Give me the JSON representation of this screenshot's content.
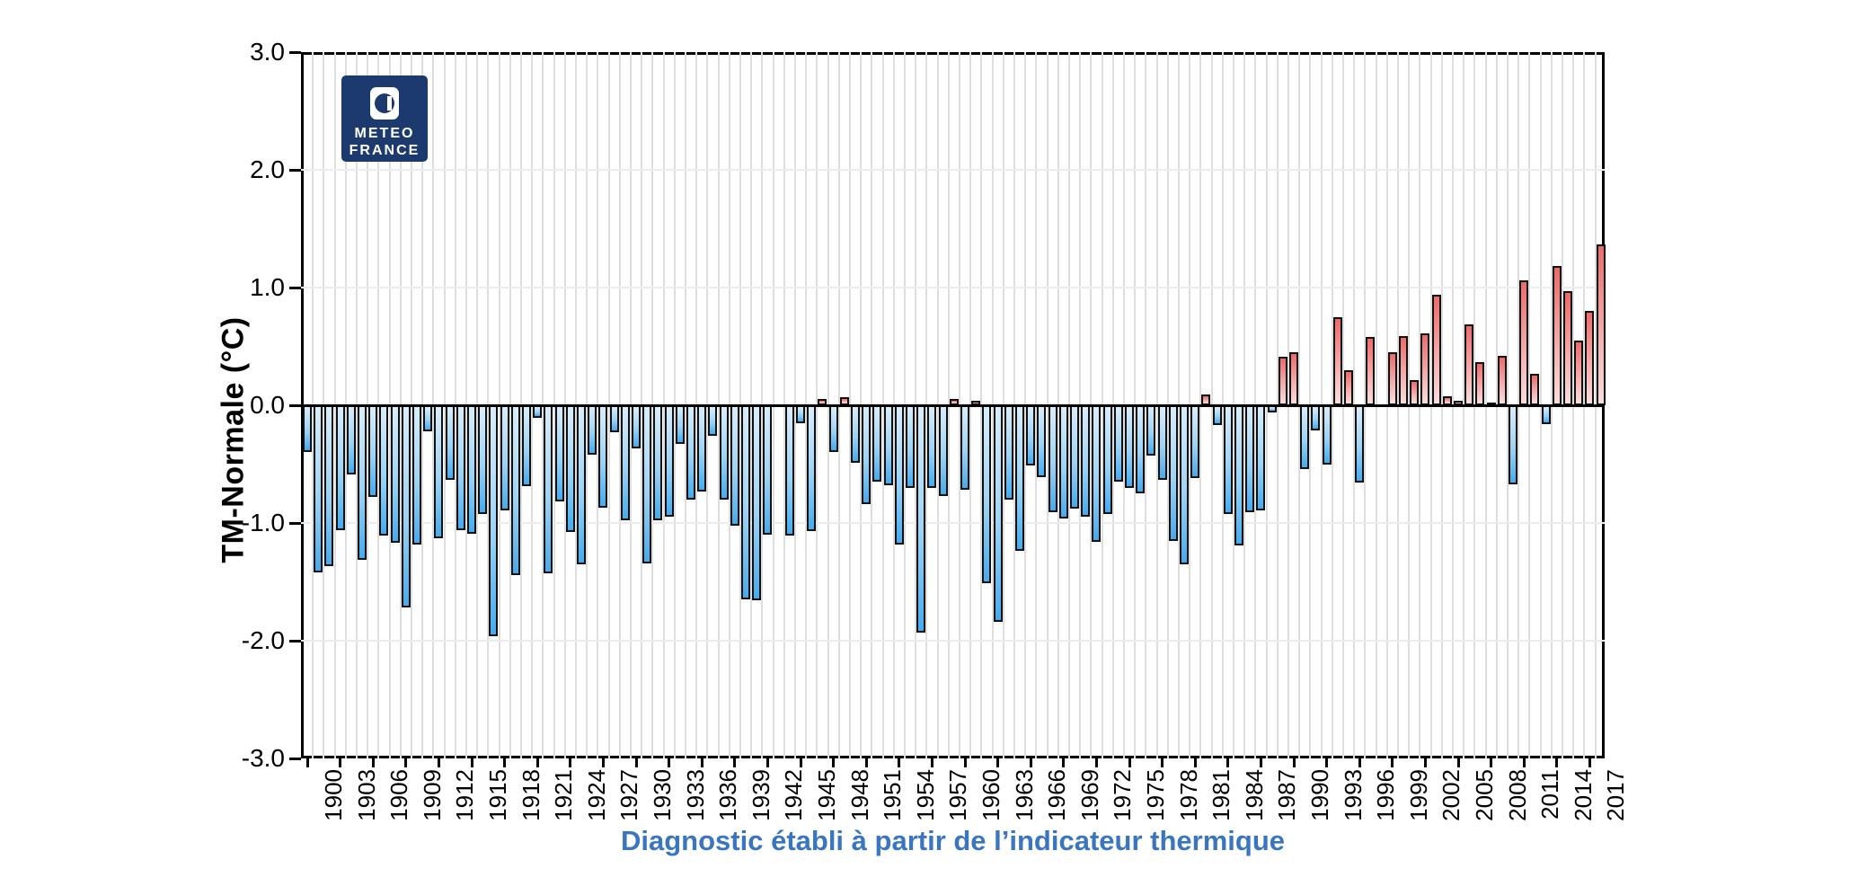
{
  "logo": {
    "line1": "METEO",
    "line2": "FRANCE",
    "bg_color": "#1d3a6e"
  },
  "y_axis": {
    "label": "TM-Normale (°C)",
    "tick_labels": [
      "3.0",
      "2.0",
      "1.0",
      "0.0",
      "-1.0",
      "-2.0",
      "-3.0"
    ],
    "tick_values": [
      3,
      2,
      1,
      0,
      -1,
      -2,
      -3
    ]
  },
  "caption": {
    "text": "Diagnostic établi à partir de l’indicateur thermique",
    "color": "#3a76c0"
  },
  "chart_data": {
    "type": "bar",
    "title": "",
    "xlabel": "",
    "ylabel": "TM-Normale (°C)",
    "ylim": [
      -3.0,
      3.0
    ],
    "grid": "on",
    "x_tick_interval": 3,
    "x_first_label": 1900,
    "x_last_label": 2017,
    "positive_color": "#ec6a6a",
    "negative_color": "#45abee",
    "years": [
      1900,
      1901,
      1902,
      1903,
      1904,
      1905,
      1906,
      1907,
      1908,
      1909,
      1910,
      1911,
      1912,
      1913,
      1914,
      1915,
      1916,
      1917,
      1918,
      1919,
      1920,
      1921,
      1922,
      1923,
      1924,
      1925,
      1926,
      1927,
      1928,
      1929,
      1930,
      1931,
      1932,
      1933,
      1934,
      1935,
      1936,
      1937,
      1938,
      1939,
      1940,
      1941,
      1942,
      1943,
      1944,
      1945,
      1946,
      1947,
      1948,
      1949,
      1950,
      1951,
      1952,
      1953,
      1954,
      1955,
      1956,
      1957,
      1958,
      1959,
      1960,
      1961,
      1962,
      1963,
      1964,
      1965,
      1966,
      1967,
      1968,
      1969,
      1970,
      1971,
      1972,
      1973,
      1974,
      1975,
      1976,
      1977,
      1978,
      1979,
      1980,
      1981,
      1982,
      1983,
      1984,
      1985,
      1986,
      1987,
      1988,
      1989,
      1990,
      1991,
      1992,
      1993,
      1994,
      1995,
      1996,
      1997,
      1998,
      1999,
      2000,
      2001,
      2002,
      2003,
      2004,
      2005,
      2006,
      2007,
      2008,
      2009,
      2010,
      2011,
      2012,
      2013,
      2014,
      2015,
      2016,
      2017,
      2018
    ],
    "values": [
      -0.4,
      -1.42,
      -1.37,
      -1.06,
      -0.59,
      -1.31,
      -0.78,
      -1.11,
      -1.17,
      -1.72,
      -1.18,
      -0.22,
      -1.13,
      -0.63,
      -1.06,
      -1.09,
      -0.92,
      -1.96,
      -0.89,
      -1.44,
      -0.69,
      -0.11,
      -1.43,
      -0.82,
      -1.08,
      -1.35,
      -0.42,
      -0.87,
      -0.23,
      -0.98,
      -0.37,
      -1.34,
      -0.98,
      -0.95,
      -0.33,
      -0.8,
      -0.73,
      -0.26,
      -0.8,
      -1.02,
      -1.65,
      -1.66,
      -1.1,
      0.0,
      -1.11,
      -0.15,
      -1.07,
      0.05,
      -0.4,
      0.07,
      -0.49,
      -0.84,
      -0.65,
      -0.68,
      -1.18,
      -0.7,
      -1.93,
      -0.7,
      -0.77,
      0.05,
      -0.72,
      0.04,
      -1.51,
      -1.84,
      -0.8,
      -1.24,
      -0.51,
      -0.61,
      -0.91,
      -0.96,
      -0.88,
      -0.95,
      -1.16,
      -0.92,
      -0.65,
      -0.7,
      -0.75,
      -0.43,
      -0.63,
      -1.15,
      -1.35,
      -0.62,
      0.09,
      -0.17,
      -0.92,
      -1.19,
      -0.91,
      -0.89,
      -0.06,
      0.41,
      0.45,
      -0.54,
      -0.21,
      -0.5,
      0.75,
      0.3,
      -0.66,
      0.58,
      0.0,
      0.45,
      0.59,
      0.21,
      0.61,
      0.94,
      0.08,
      0.04,
      0.69,
      0.37,
      0.02,
      0.42,
      -0.67,
      1.06,
      0.27,
      -0.16,
      1.18,
      0.97,
      0.55,
      0.8,
      1.37
    ]
  }
}
